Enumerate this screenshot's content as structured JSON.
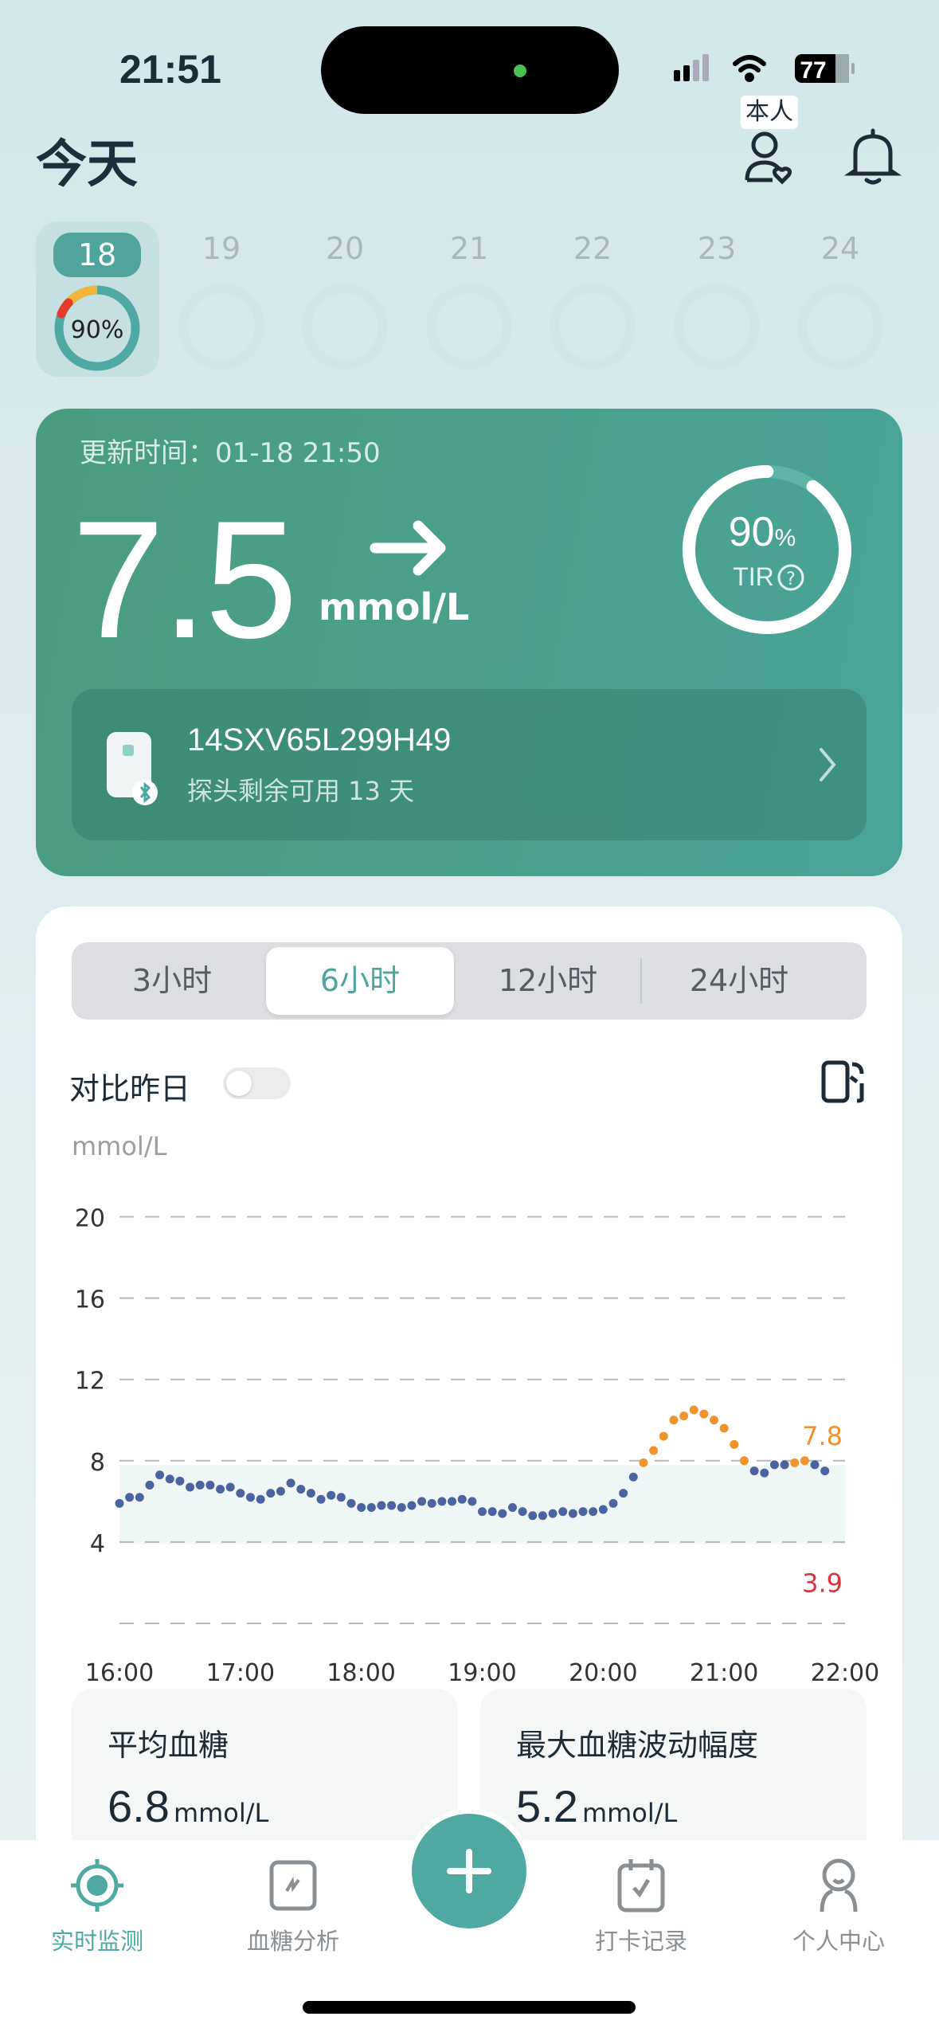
{
  "status": {
    "time": "21:51",
    "battery": "77"
  },
  "header": {
    "title": "今天",
    "profile_tooltip": "本人"
  },
  "dates": {
    "days": [
      "18",
      "19",
      "20",
      "21",
      "22",
      "23",
      "24"
    ],
    "selected": "18",
    "selected_tir": "90%"
  },
  "glucose": {
    "updated_label": "更新时间：",
    "updated_time": "01-18 21:50",
    "value": "7.5",
    "unit": "mmol/L",
    "trend": "steady-arrow-right",
    "tir_value": "90",
    "tir_percent": "%",
    "tir_label": "TIR",
    "tir_fraction": 0.9
  },
  "device": {
    "serial": "14SXV65L299H49",
    "remaining": "探头剩余可用 13 天"
  },
  "range_tabs": {
    "items": [
      "3小时",
      "6小时",
      "12小时",
      "24小时"
    ],
    "selected": "6小时"
  },
  "compare": {
    "label": "对比昨日",
    "enabled": false
  },
  "chart_data": {
    "type": "scatter",
    "ylabel": "mmol/L",
    "ylim": [
      0,
      20
    ],
    "yticks": [
      "20",
      "16",
      "12",
      "8",
      "4"
    ],
    "xticks": [
      "16:00",
      "17:00",
      "18:00",
      "19:00",
      "20:00",
      "21:00",
      "22:00"
    ],
    "xlim": [
      "16:00",
      "22:00"
    ],
    "target_high": "7.8",
    "target_low": "3.9",
    "colors": {
      "normal": "#4a64a0",
      "high": "#f0922e",
      "low_label": "#d9333f",
      "band": "#eef6f6"
    },
    "points": [
      [
        "16:00",
        5.9
      ],
      [
        "16:05",
        6.2
      ],
      [
        "16:10",
        6.2
      ],
      [
        "16:15",
        6.8
      ],
      [
        "16:20",
        7.3
      ],
      [
        "16:25",
        7.1
      ],
      [
        "16:30",
        7.0
      ],
      [
        "16:35",
        6.7
      ],
      [
        "16:40",
        6.8
      ],
      [
        "16:45",
        6.8
      ],
      [
        "16:50",
        6.6
      ],
      [
        "16:55",
        6.7
      ],
      [
        "17:00",
        6.4
      ],
      [
        "17:05",
        6.2
      ],
      [
        "17:10",
        6.1
      ],
      [
        "17:15",
        6.4
      ],
      [
        "17:20",
        6.5
      ],
      [
        "17:25",
        6.9
      ],
      [
        "17:30",
        6.6
      ],
      [
        "17:35",
        6.4
      ],
      [
        "17:40",
        6.1
      ],
      [
        "17:45",
        6.3
      ],
      [
        "17:50",
        6.2
      ],
      [
        "17:55",
        5.9
      ],
      [
        "18:00",
        5.7
      ],
      [
        "18:05",
        5.7
      ],
      [
        "18:10",
        5.8
      ],
      [
        "18:15",
        5.8
      ],
      [
        "18:20",
        5.7
      ],
      [
        "18:25",
        5.8
      ],
      [
        "18:30",
        6.0
      ],
      [
        "18:35",
        5.9
      ],
      [
        "18:40",
        6.0
      ],
      [
        "18:45",
        6.0
      ],
      [
        "18:50",
        6.1
      ],
      [
        "18:55",
        6.0
      ],
      [
        "19:00",
        5.5
      ],
      [
        "19:05",
        5.5
      ],
      [
        "19:10",
        5.4
      ],
      [
        "19:15",
        5.7
      ],
      [
        "19:20",
        5.5
      ],
      [
        "19:25",
        5.3
      ],
      [
        "19:30",
        5.3
      ],
      [
        "19:35",
        5.4
      ],
      [
        "19:40",
        5.5
      ],
      [
        "19:45",
        5.4
      ],
      [
        "19:50",
        5.5
      ],
      [
        "19:55",
        5.5
      ],
      [
        "20:00",
        5.6
      ],
      [
        "20:05",
        5.9
      ],
      [
        "20:10",
        6.4
      ],
      [
        "20:15",
        7.2
      ],
      [
        "20:20",
        7.9
      ],
      [
        "20:25",
        8.5
      ],
      [
        "20:30",
        9.2
      ],
      [
        "20:35",
        10.0
      ],
      [
        "20:40",
        10.2
      ],
      [
        "20:45",
        10.5
      ],
      [
        "20:50",
        10.3
      ],
      [
        "20:55",
        10.0
      ],
      [
        "21:00",
        9.6
      ],
      [
        "21:05",
        8.8
      ],
      [
        "21:10",
        8.0
      ],
      [
        "21:15",
        7.5
      ],
      [
        "21:20",
        7.4
      ],
      [
        "21:25",
        7.8
      ],
      [
        "21:30",
        7.8
      ],
      [
        "21:35",
        7.9
      ],
      [
        "21:40",
        8.0
      ],
      [
        "21:45",
        7.8
      ],
      [
        "21:50",
        7.5
      ]
    ]
  },
  "stats": [
    {
      "title": "平均血糖",
      "value": "6.8",
      "unit": "mmol/L"
    },
    {
      "title": "最大血糖波动幅度",
      "value": "5.2",
      "unit": "mmol/L"
    }
  ],
  "nav": {
    "items": [
      {
        "label": "实时监测",
        "active": true
      },
      {
        "label": "血糖分析"
      },
      {
        "label": "打卡记录"
      },
      {
        "label": "个人中心"
      }
    ],
    "accent": "#4fa9a3"
  }
}
